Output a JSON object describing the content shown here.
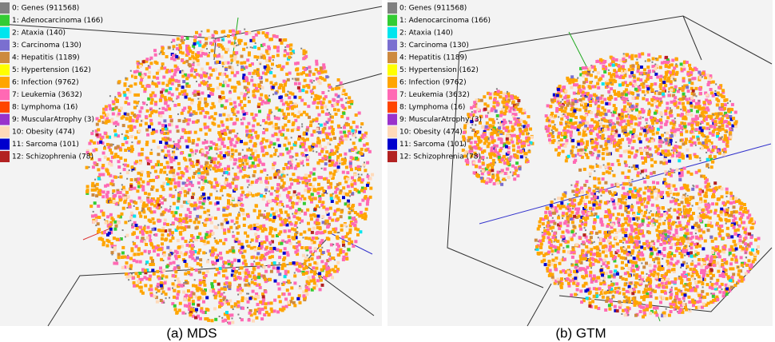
{
  "panels": [
    {
      "caption": "(a) MDS",
      "legend": [
        {
          "label": "0: Genes (911568)",
          "color": "#808080"
        },
        {
          "label": "1: Adenocarcinoma (166)",
          "color": "#33cc33"
        },
        {
          "label": "2: Ataxia (140)",
          "color": "#00e5ee"
        },
        {
          "label": "3: Carcinoma (130)",
          "color": "#7a6fd0"
        },
        {
          "label": "4: Hepatitis (1189)",
          "color": "#cd8a3f"
        },
        {
          "label": "5: Hypertension (162)",
          "color": "#ffff00"
        },
        {
          "label": "6: Infection (9762)",
          "color": "#ffa500"
        },
        {
          "label": "7: Leukemia (3632)",
          "color": "#ff69b4"
        },
        {
          "label": "8: Lymphoma (16)",
          "color": "#ff4500"
        },
        {
          "label": "9: MuscularAtrophy (3)",
          "color": "#9932cc"
        },
        {
          "label": "10: Obesity (474)",
          "color": "#ffdab9"
        },
        {
          "label": "11: Sarcoma (101)",
          "color": "#0000cd"
        },
        {
          "label": "12: Schizophrenia (78)",
          "color": "#b22222"
        }
      ]
    },
    {
      "caption": "(b) GTM",
      "legend": [
        {
          "label": "0: Genes (911568)",
          "color": "#808080"
        },
        {
          "label": "1: Adenocarcinoma (166)",
          "color": "#33cc33"
        },
        {
          "label": "2: Ataxia (140)",
          "color": "#00e5ee"
        },
        {
          "label": "3: Carcinoma (130)",
          "color": "#7a6fd0"
        },
        {
          "label": "4: Hepatitis (1189)",
          "color": "#cd8a3f"
        },
        {
          "label": "5: Hypertension (162)",
          "color": "#ffff00"
        },
        {
          "label": "6: Infection (9762)",
          "color": "#ffa500"
        },
        {
          "label": "7: Leukemia (3632)",
          "color": "#ff69b4"
        },
        {
          "label": "8: Lymphoma (16)",
          "color": "#ff4500"
        },
        {
          "label": "9: MuscularAtrophy (3)",
          "color": "#9932cc"
        },
        {
          "label": "10: Obesity (474)",
          "color": "#ffdab9"
        },
        {
          "label": "11: Sarcoma (101)",
          "color": "#0000cd"
        },
        {
          "label": "12: Schizophrenia (78)",
          "color": "#b22222"
        }
      ]
    }
  ]
}
